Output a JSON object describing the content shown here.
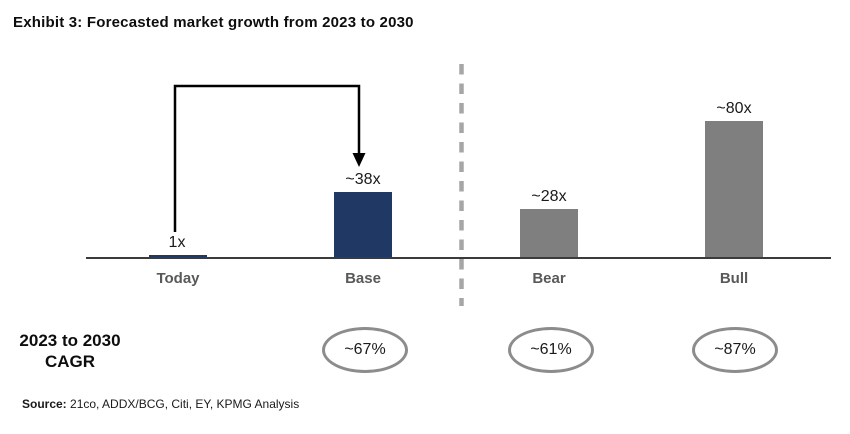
{
  "title": "Exhibit 3: Forecasted market growth from 2023 to 2030",
  "colors": {
    "navy": "#1f3864",
    "gray": "#7f7f7f",
    "axis": "#3b3b3b",
    "divider": "#a6a6a6",
    "oval_border": "#8c8c8c",
    "category_label": "#595959"
  },
  "chart_data": {
    "type": "bar",
    "title": "Exhibit 3: Forecasted market growth from 2023 to 2030",
    "categories": [
      "Today",
      "Base",
      "Bear",
      "Bull"
    ],
    "values": [
      1,
      38,
      28,
      80
    ],
    "value_labels": [
      "1x",
      "~38x",
      "~28x",
      "~80x"
    ],
    "bar_color_keys": [
      "navy",
      "navy",
      "gray",
      "gray"
    ],
    "ylim": [
      0,
      85
    ],
    "xlabel": "",
    "ylabel": "",
    "grid": "off",
    "legend": "none",
    "annotations": {
      "arrow": "from Today (1x) up and over to Base bar (~38x)",
      "divider": "dashed vertical line separating Base scenario from Bear/Bull scenarios"
    },
    "cagr": {
      "heading_line1": "2023 to 2030",
      "heading_line2": "CAGR",
      "values": {
        "Base": "~67%",
        "Bear": "~61%",
        "Bull": "~87%"
      }
    }
  },
  "source": {
    "prefix": "Source:",
    "text": " 21co, ADDX/BCG, Citi, EY, KPMG Analysis"
  }
}
